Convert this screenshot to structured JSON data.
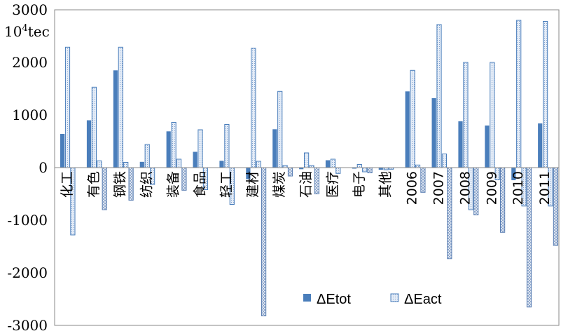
{
  "chart_data": {
    "type": "bar",
    "categories": [
      "化工",
      "有色",
      "钢铁",
      "纺织",
      "装备",
      "食品",
      "轻工",
      "建材",
      "煤炭",
      "石油",
      "医疗",
      "电子",
      "其他",
      "2006",
      "2007",
      "2008",
      "2009",
      "2010",
      "2011"
    ],
    "series": [
      {
        "name": "ΔEtot",
        "values": [
          640,
          900,
          1850,
          110,
          690,
          300,
          130,
          -220,
          730,
          -30,
          140,
          -20,
          -40,
          1450,
          1320,
          880,
          800,
          -240,
          840
        ],
        "color": "#4a7ebb"
      },
      {
        "name": "ΔEact",
        "values": [
          2290,
          1530,
          2290,
          440,
          860,
          720,
          820,
          2270,
          1450,
          280,
          160,
          60,
          -40,
          1850,
          2720,
          2000,
          2000,
          2800,
          2780
        ],
        "color": "#dbe6f4",
        "pattern": "dotted"
      },
      {
        "name": "",
        "values": [
          -1280,
          130,
          100,
          -320,
          160,
          -420,
          -700,
          120,
          40,
          40,
          -110,
          -80,
          -30,
          50,
          260,
          -800,
          -230,
          -730,
          -730
        ],
        "color": "#dbe6f4",
        "pattern": "dotted",
        "inverted_fill": true
      },
      {
        "name": "",
        "values": [
          0,
          -800,
          -620,
          0,
          -430,
          0,
          0,
          -2820,
          -160,
          -500,
          0,
          -100,
          0,
          -470,
          -1730,
          -900,
          -1230,
          -2650,
          -1480
        ],
        "color": "#dbe6f4",
        "pattern": "crosshatch"
      }
    ],
    "ylim": [
      -3000,
      3000
    ],
    "yticks": [
      3000,
      2000,
      1000,
      0,
      -1000,
      -2000,
      -3000
    ],
    "ytick_labels": [
      "3000",
      "2000",
      "1000",
      "0",
      "-1000",
      "-2000",
      "-3000"
    ],
    "unit_label": "10",
    "unit_sup": "4",
    "unit_suffix": "tec",
    "legend_position": "bottom-right",
    "grid": false
  }
}
